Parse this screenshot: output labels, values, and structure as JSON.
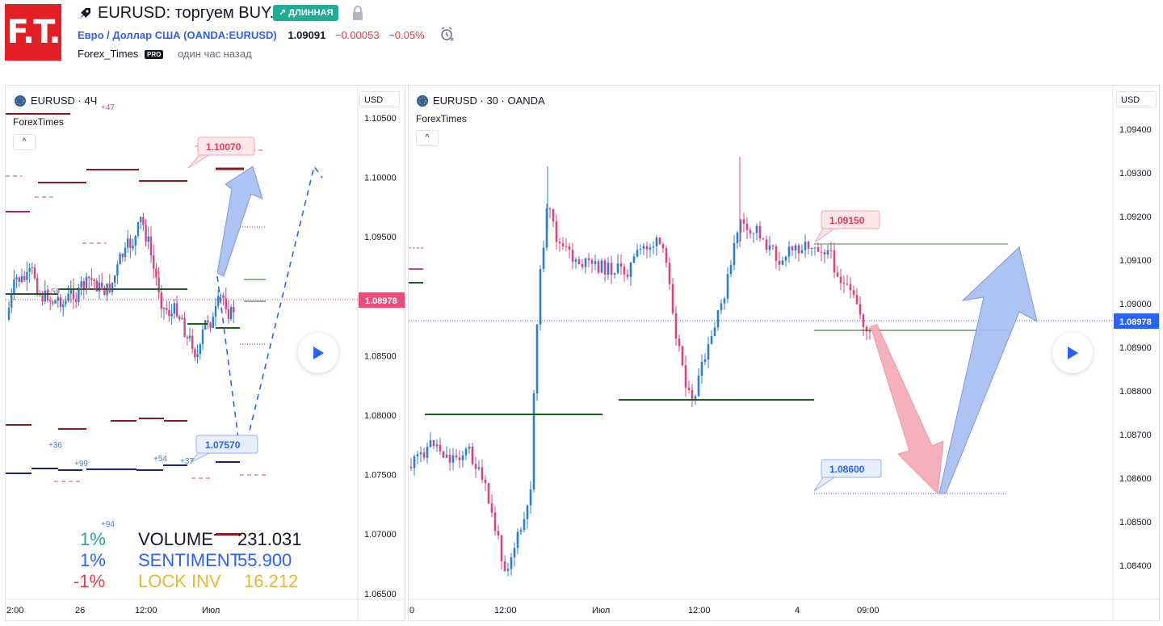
{
  "header": {
    "logo_text": "F.T.",
    "title": "EURUSD: торгуем BUY.",
    "badge": "↗ ДЛИННАЯ",
    "symbol_name": "Евро / Доллар США (OANDA:EURUSD)",
    "price": "1.09091",
    "change": "−0.00053",
    "change_pct": "−0.05%",
    "author": "Forex_Times",
    "author_badge": "PRO",
    "published": "один час назад"
  },
  "left_chart": {
    "legend": "EURUSD · 4Ч",
    "indicator": "ForexTimes",
    "currency": "USD",
    "y_ticks": [
      "1.10500",
      "1.10000",
      "1.09500",
      "1.09000",
      "1.08500",
      "1.08000",
      "1.07500",
      "1.07000",
      "1.06500"
    ],
    "x_ticks": [
      "2:00",
      "26",
      "12:00",
      "Июл"
    ],
    "current_price": "1.08978",
    "target_label": "1.10070",
    "support_label": "1.07570",
    "small_labels": [
      "+47",
      "+36",
      "+99",
      "+54",
      "+37",
      "+94",
      "+50"
    ],
    "stats": [
      {
        "pct": "1%",
        "name": "VOLUME",
        "value": "231.031",
        "pct_color": "#26a69a",
        "name_color": "#131722",
        "value_color": "#131722"
      },
      {
        "pct": "1%",
        "name": "SENTIMENT",
        "value": "55.900",
        "pct_color": "#2962ff",
        "name_color": "#2962ff",
        "value_color": "#2962ff"
      },
      {
        "pct": "-1%",
        "name": "LOCK INV",
        "value": "16.212",
        "pct_color": "#f23645",
        "name_color": "#e8b830",
        "value_color": "#e8b830"
      }
    ]
  },
  "right_chart": {
    "legend": "EURUSD · 30 · OANDA",
    "indicator": "ForexTimes",
    "currency": "USD",
    "y_ticks": [
      "1.09400",
      "1.09300",
      "1.09200",
      "1.09100",
      "1.09000",
      "1.08900",
      "1.08800",
      "1.08700",
      "1.08600",
      "1.08500",
      "1.08400"
    ],
    "x_ticks": [
      "0",
      "12:00",
      "Июл",
      "12:00",
      "4",
      "09:00"
    ],
    "current_price": "1.08978",
    "resistance_label": "1.09150",
    "target_label": "1.08600"
  },
  "colors": {
    "up": "#2a7fc8",
    "down": "#d4457f",
    "accent_blue": "#2962ff",
    "red": "#f23645",
    "green_badge": "#22ab94",
    "price_tag": "#e84e7a"
  }
}
